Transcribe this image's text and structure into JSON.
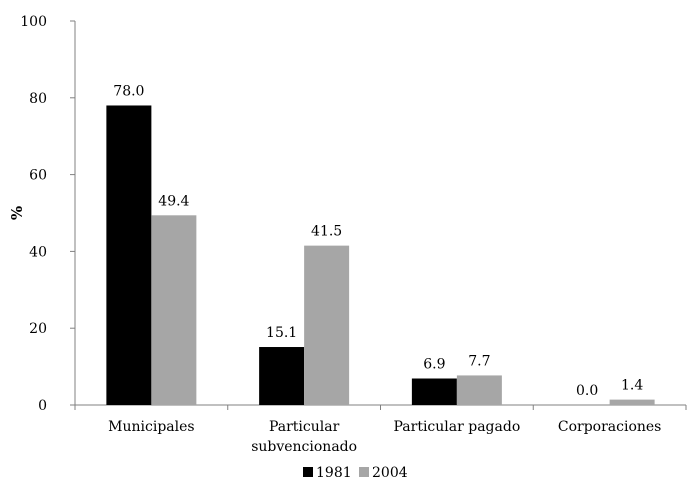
{
  "chart_data": {
    "type": "bar",
    "title": "",
    "xlabel": "",
    "ylabel": "%",
    "ylim": [
      0,
      100
    ],
    "yticks": [
      "0",
      "20",
      "40",
      "60",
      "80",
      "100"
    ],
    "grid": false,
    "legend_position": "bottom",
    "categories": [
      [
        "Municipales"
      ],
      [
        "Particular",
        "subvencionado"
      ],
      [
        "Particular pagado"
      ],
      [
        "Corporaciones"
      ]
    ],
    "series": [
      {
        "name": "1981",
        "color": "#000000",
        "values": [
          78.0,
          15.1,
          6.9,
          0.0
        ],
        "labels": [
          "78.0",
          "15.1",
          "6.9",
          "0.0"
        ]
      },
      {
        "name": "2004",
        "color": "#a6a6a6",
        "values": [
          49.4,
          41.5,
          7.7,
          1.4
        ],
        "labels": [
          "49.4",
          "41.5",
          "7.7",
          "1.4"
        ]
      }
    ]
  }
}
